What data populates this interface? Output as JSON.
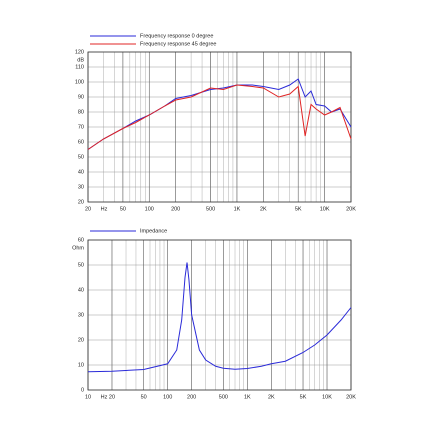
{
  "chart_data": [
    {
      "type": "line",
      "y_unit": "dB",
      "x_unit": "Hz",
      "log_x": true,
      "grid": true,
      "xlim": [
        20,
        20000
      ],
      "ylim": [
        20,
        120
      ],
      "xticks": [
        20,
        50,
        100,
        200,
        500,
        {
          "value": 1000,
          "label": "1K"
        },
        {
          "value": 2000,
          "label": "2K"
        },
        {
          "value": 5000,
          "label": "5K"
        },
        {
          "value": 10000,
          "label": "10K"
        },
        {
          "value": 20000,
          "label": "20K"
        }
      ],
      "yticks": [
        20,
        30,
        40,
        50,
        60,
        70,
        80,
        90,
        100,
        110,
        120
      ],
      "series": [
        {
          "name": "Frequency response 0 degree",
          "color": "#2a2ad8",
          "x": [
            20,
            30,
            50,
            70,
            100,
            150,
            200,
            300,
            500,
            700,
            1000,
            1500,
            2000,
            3000,
            4000,
            5000,
            6000,
            7000,
            8000,
            10000,
            12000,
            15000,
            20000
          ],
          "values": [
            55,
            62,
            69,
            74,
            78,
            84,
            89,
            91,
            95,
            96,
            98,
            98,
            97,
            95,
            98,
            102,
            90,
            94,
            85,
            84,
            80,
            82,
            70
          ]
        },
        {
          "name": "Frequency response 45 degree",
          "color": "#e02424",
          "x": [
            20,
            30,
            50,
            70,
            100,
            150,
            200,
            300,
            500,
            700,
            1000,
            1500,
            2000,
            3000,
            4000,
            5000,
            6000,
            7000,
            8000,
            10000,
            12000,
            15000,
            20000
          ],
          "values": [
            55,
            62,
            69,
            73,
            78,
            84,
            88,
            90,
            96,
            95,
            98,
            97,
            96,
            90,
            92,
            97,
            64,
            85,
            82,
            78,
            80,
            83,
            62
          ]
        }
      ]
    },
    {
      "type": "line",
      "y_unit": "Ohm",
      "x_unit": "Hz",
      "log_x": true,
      "grid": true,
      "xlim": [
        10,
        20000
      ],
      "ylim": [
        0,
        60
      ],
      "xticks": [
        10,
        20,
        50,
        100,
        200,
        500,
        {
          "value": 1000,
          "label": "1K"
        },
        {
          "value": 2000,
          "label": "2K"
        },
        {
          "value": 5000,
          "label": "5K"
        },
        {
          "value": 10000,
          "label": "10K"
        },
        {
          "value": 20000,
          "label": "20K"
        }
      ],
      "yticks": [
        0,
        10,
        20,
        30,
        40,
        50,
        60
      ],
      "series": [
        {
          "name": "Impedance",
          "color": "#2a2ad8",
          "x": [
            10,
            20,
            50,
            100,
            130,
            150,
            165,
            175,
            185,
            200,
            250,
            300,
            400,
            500,
            700,
            1000,
            1500,
            2000,
            3000,
            5000,
            7000,
            10000,
            15000,
            20000
          ],
          "values": [
            7.3,
            7.5,
            8.2,
            10.5,
            16,
            28,
            45,
            51,
            44,
            30,
            16,
            12,
            9.5,
            8.7,
            8.3,
            8.6,
            9.5,
            10.5,
            11.5,
            15,
            18,
            22,
            28,
            33
          ]
        }
      ]
    }
  ]
}
